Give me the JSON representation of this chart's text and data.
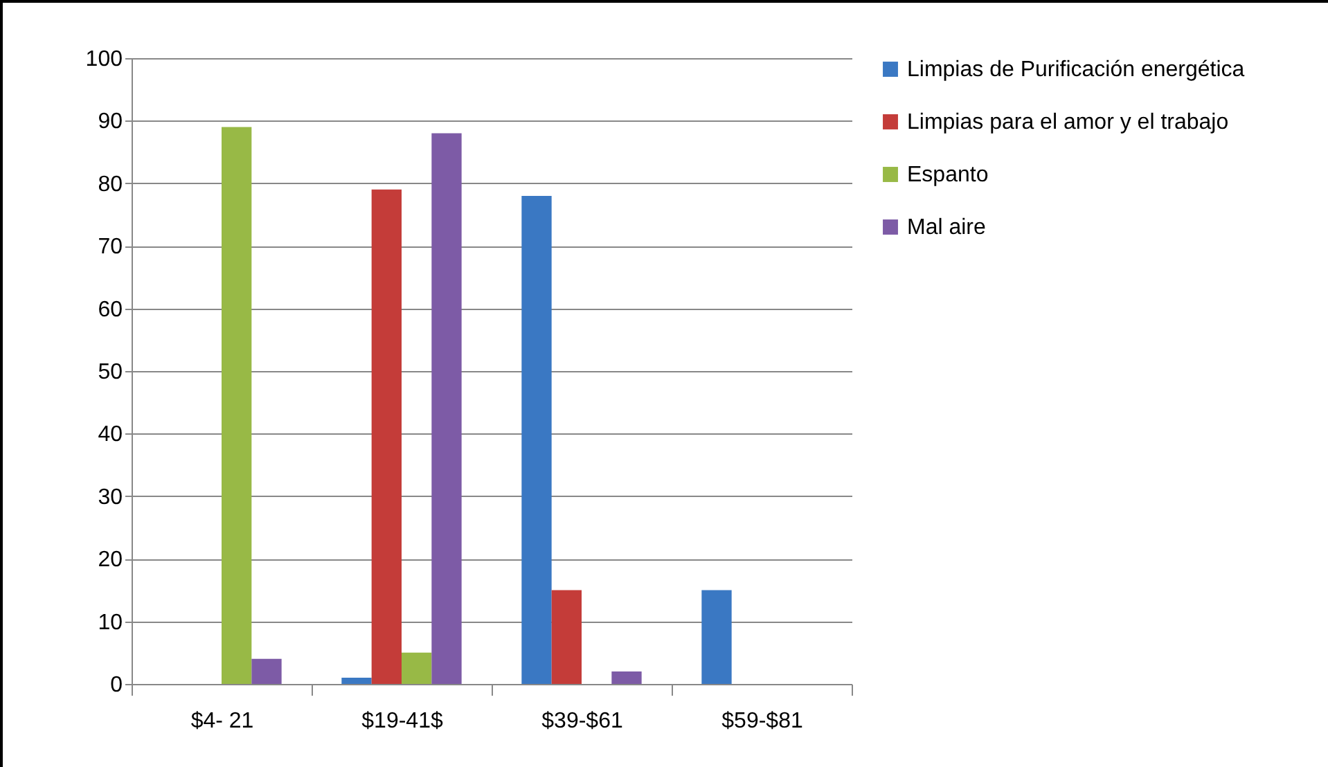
{
  "chart_data": {
    "type": "bar",
    "categories": [
      "$4- 21",
      "$19-41$",
      "$39-$61",
      "$59-$81"
    ],
    "series": [
      {
        "name": "Limpias de Purificación energética",
        "color": "#3a78c3",
        "values": [
          0,
          1,
          78,
          15
        ]
      },
      {
        "name": "Limpias para el amor y el trabajo",
        "color": "#c43c39",
        "values": [
          0,
          79,
          15,
          0
        ]
      },
      {
        "name": "Espanto",
        "color": "#98b946",
        "values": [
          89,
          5,
          0,
          0
        ]
      },
      {
        "name": "Mal aire",
        "color": "#7d5ba6",
        "values": [
          4,
          88,
          2,
          0
        ]
      }
    ],
    "ylim": [
      0,
      100
    ],
    "yticks": [
      0,
      10,
      20,
      30,
      40,
      50,
      60,
      70,
      80,
      90,
      100
    ],
    "grid": "y",
    "legend": "right"
  }
}
